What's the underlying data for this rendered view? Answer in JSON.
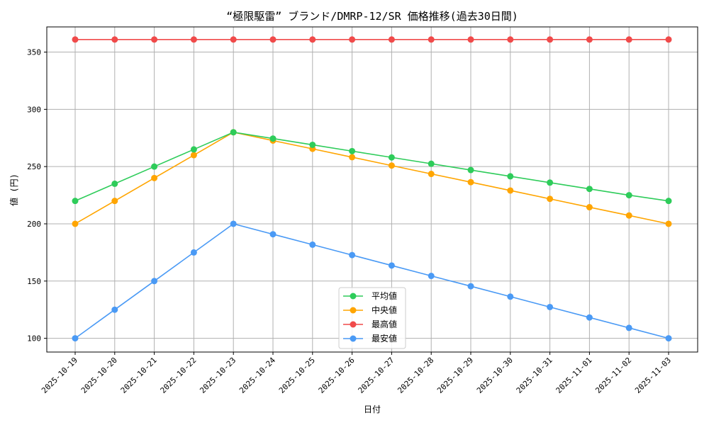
{
  "chart_data": {
    "type": "line",
    "title": "“極限駆雷” ブランド/DMRP-12/SR 価格推移(過去30日間)",
    "xlabel": "日付",
    "ylabel": "値 (円)",
    "ylim": [
      88,
      372
    ],
    "yticks": [
      100,
      150,
      200,
      250,
      300,
      350
    ],
    "grid": true,
    "legend_position": "lower-center",
    "categories": [
      "2025-10-19",
      "2025-10-20",
      "2025-10-21",
      "2025-10-22",
      "2025-10-23",
      "2025-10-24",
      "2025-10-25",
      "2025-10-26",
      "2025-10-27",
      "2025-10-28",
      "2025-10-29",
      "2025-10-30",
      "2025-10-31",
      "2025-11-01",
      "2025-11-02",
      "2025-11-03"
    ],
    "series": [
      {
        "name": "平均値",
        "color": "#2ecc5a",
        "values": [
          220,
          235,
          250,
          265,
          280,
          274.5,
          269,
          263.5,
          258,
          252.5,
          247,
          241.5,
          236,
          230.5,
          225,
          220
        ]
      },
      {
        "name": "中央値",
        "color": "#ffa500",
        "values": [
          200,
          220,
          240,
          260,
          280,
          272.7,
          265.5,
          258.2,
          250.9,
          243.6,
          236.4,
          229.1,
          221.8,
          214.5,
          207.3,
          200
        ]
      },
      {
        "name": "最高値",
        "color": "#f04a4a",
        "values": [
          361,
          361,
          361,
          361,
          361,
          361,
          361,
          361,
          361,
          361,
          361,
          361,
          361,
          361,
          361,
          361
        ]
      },
      {
        "name": "最安値",
        "color": "#4a9af5",
        "values": [
          100,
          125,
          150,
          175,
          200,
          190.9,
          181.8,
          172.7,
          163.6,
          154.5,
          145.5,
          136.4,
          127.3,
          118.2,
          109.1,
          100
        ]
      }
    ]
  }
}
